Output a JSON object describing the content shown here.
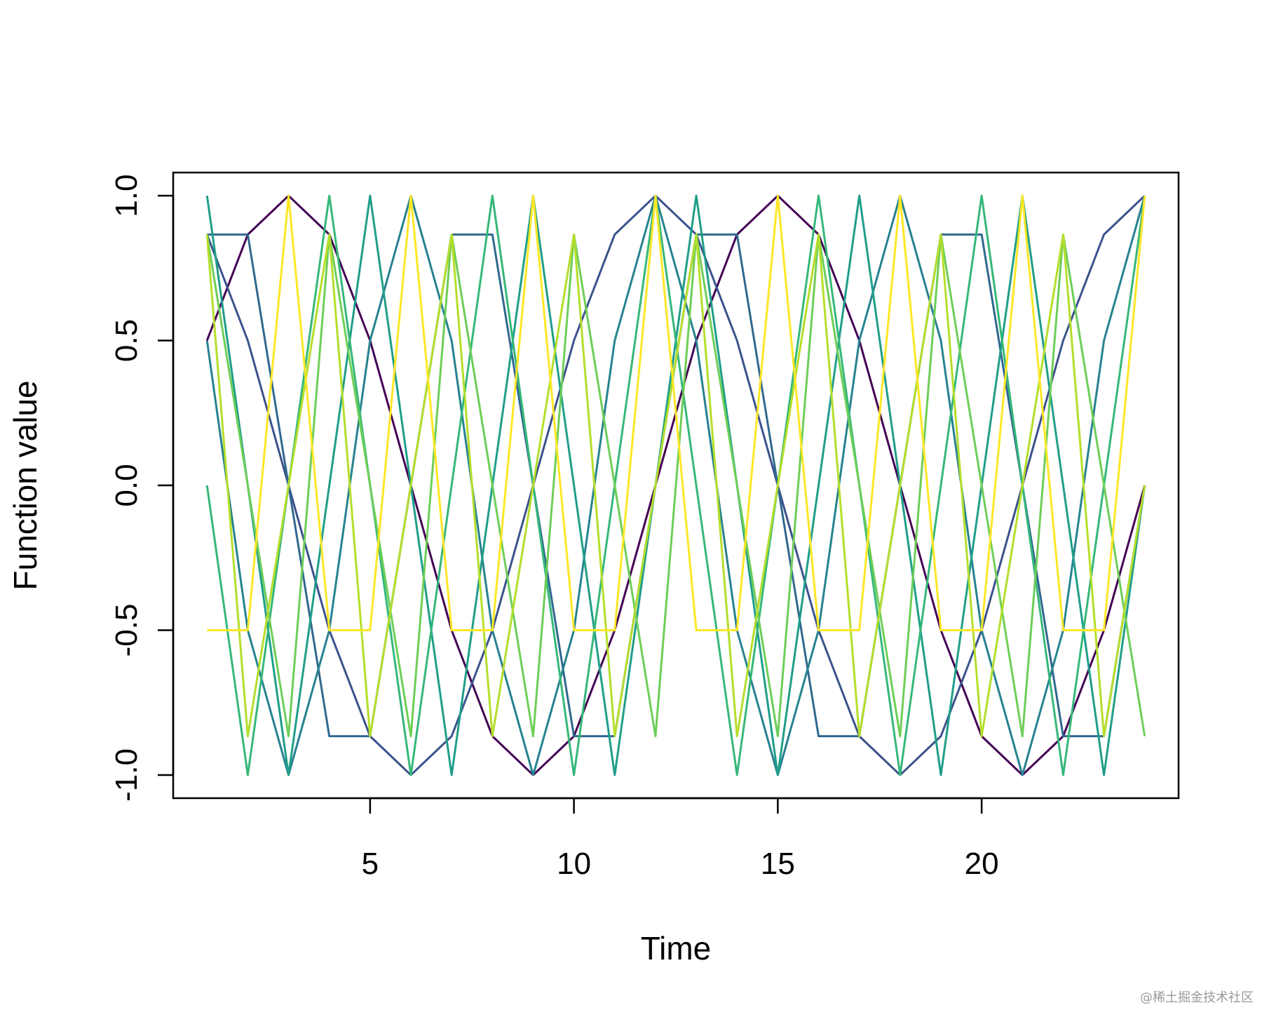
{
  "chart_data": {
    "type": "line",
    "title": "",
    "xlabel": "Time",
    "ylabel": "Function value",
    "xlim": [
      0.17,
      24.83
    ],
    "ylim": [
      -1.08,
      1.08
    ],
    "x_ticks": [
      5,
      10,
      15,
      20
    ],
    "y_ticks": [
      -1.0,
      -0.5,
      0.0,
      0.5,
      1.0
    ],
    "y_tick_labels": [
      "-1.0",
      "-0.5",
      "0.0",
      "0.5",
      "1.0"
    ],
    "grid": false,
    "legend": "none",
    "x": [
      1,
      2,
      3,
      4,
      5,
      6,
      7,
      8,
      9,
      10,
      11,
      12,
      13,
      14,
      15,
      16,
      17,
      18,
      19,
      20,
      21,
      22,
      23,
      24
    ],
    "series": [
      {
        "color": "#440154",
        "values": [
          0.5,
          0.866,
          1,
          0.866,
          0.5,
          0,
          -0.5,
          -0.866,
          -1,
          -0.866,
          -0.5,
          0,
          0.5,
          0.866,
          1,
          0.866,
          0.5,
          0,
          -0.5,
          -0.866,
          -1,
          -0.866,
          -0.5,
          0
        ]
      },
      {
        "color": "#3B528B",
        "values": [
          0.866,
          0.5,
          0,
          -0.5,
          -0.866,
          -1,
          -0.866,
          -0.5,
          0,
          0.5,
          0.866,
          1,
          0.866,
          0.5,
          0,
          -0.5,
          -0.866,
          -1,
          -0.866,
          -0.5,
          0,
          0.5,
          0.866,
          1
        ]
      },
      {
        "color": "#31688E",
        "values": [
          0.866,
          0.866,
          0,
          -0.866,
          -0.866,
          0,
          0.866,
          0.866,
          0,
          -0.866,
          -0.866,
          0,
          0.866,
          0.866,
          0,
          -0.866,
          -0.866,
          0,
          0.866,
          0.866,
          0,
          -0.866,
          -0.866,
          0
        ]
      },
      {
        "color": "#26828E",
        "values": [
          0.5,
          -0.5,
          -1,
          -0.5,
          0.5,
          1,
          0.5,
          -0.5,
          -1,
          -0.5,
          0.5,
          1,
          0.5,
          -0.5,
          -1,
          -0.5,
          0.5,
          1,
          0.5,
          -0.5,
          -1,
          -0.5,
          0.5,
          1
        ]
      },
      {
        "color": "#1F9E89",
        "values": [
          1,
          0,
          -1,
          0,
          1,
          0,
          -1,
          0,
          1,
          0,
          -1,
          0,
          1,
          0,
          -1,
          0,
          1,
          0,
          -1,
          0,
          1,
          0,
          -1,
          0
        ]
      },
      {
        "color": "#35B779",
        "values": [
          0,
          -1,
          0,
          1,
          0,
          -1,
          0,
          1,
          0,
          -1,
          0,
          1,
          0,
          -1,
          0,
          1,
          0,
          -1,
          0,
          1,
          0,
          -1,
          0,
          1
        ]
      },
      {
        "color": "#6ECE58",
        "values": [
          0.866,
          0,
          -0.866,
          0.866,
          0,
          -0.866,
          0.866,
          0,
          -0.866,
          0.866,
          0,
          -0.866,
          0.866,
          0,
          -0.866,
          0.866,
          0,
          -0.866,
          0.866,
          0,
          -0.866,
          0.866,
          0,
          -0.866
        ]
      },
      {
        "color": "#B5DE2B",
        "values": [
          0.866,
          -0.866,
          0,
          0.866,
          -0.866,
          0,
          0.866,
          -0.866,
          0,
          0.866,
          -0.866,
          0,
          0.866,
          -0.866,
          0,
          0.866,
          -0.866,
          0,
          0.866,
          -0.866,
          0,
          0.866,
          -0.866,
          0
        ]
      },
      {
        "color": "#FDE725",
        "values": [
          -0.5,
          -0.5,
          1,
          -0.5,
          -0.5,
          1,
          -0.5,
          -0.5,
          1,
          -0.5,
          -0.5,
          1,
          -0.5,
          -0.5,
          1,
          -0.5,
          -0.5,
          1,
          -0.5,
          -0.5,
          1,
          -0.5,
          -0.5,
          1
        ]
      }
    ]
  },
  "watermark": "@稀土掘金技术社区"
}
